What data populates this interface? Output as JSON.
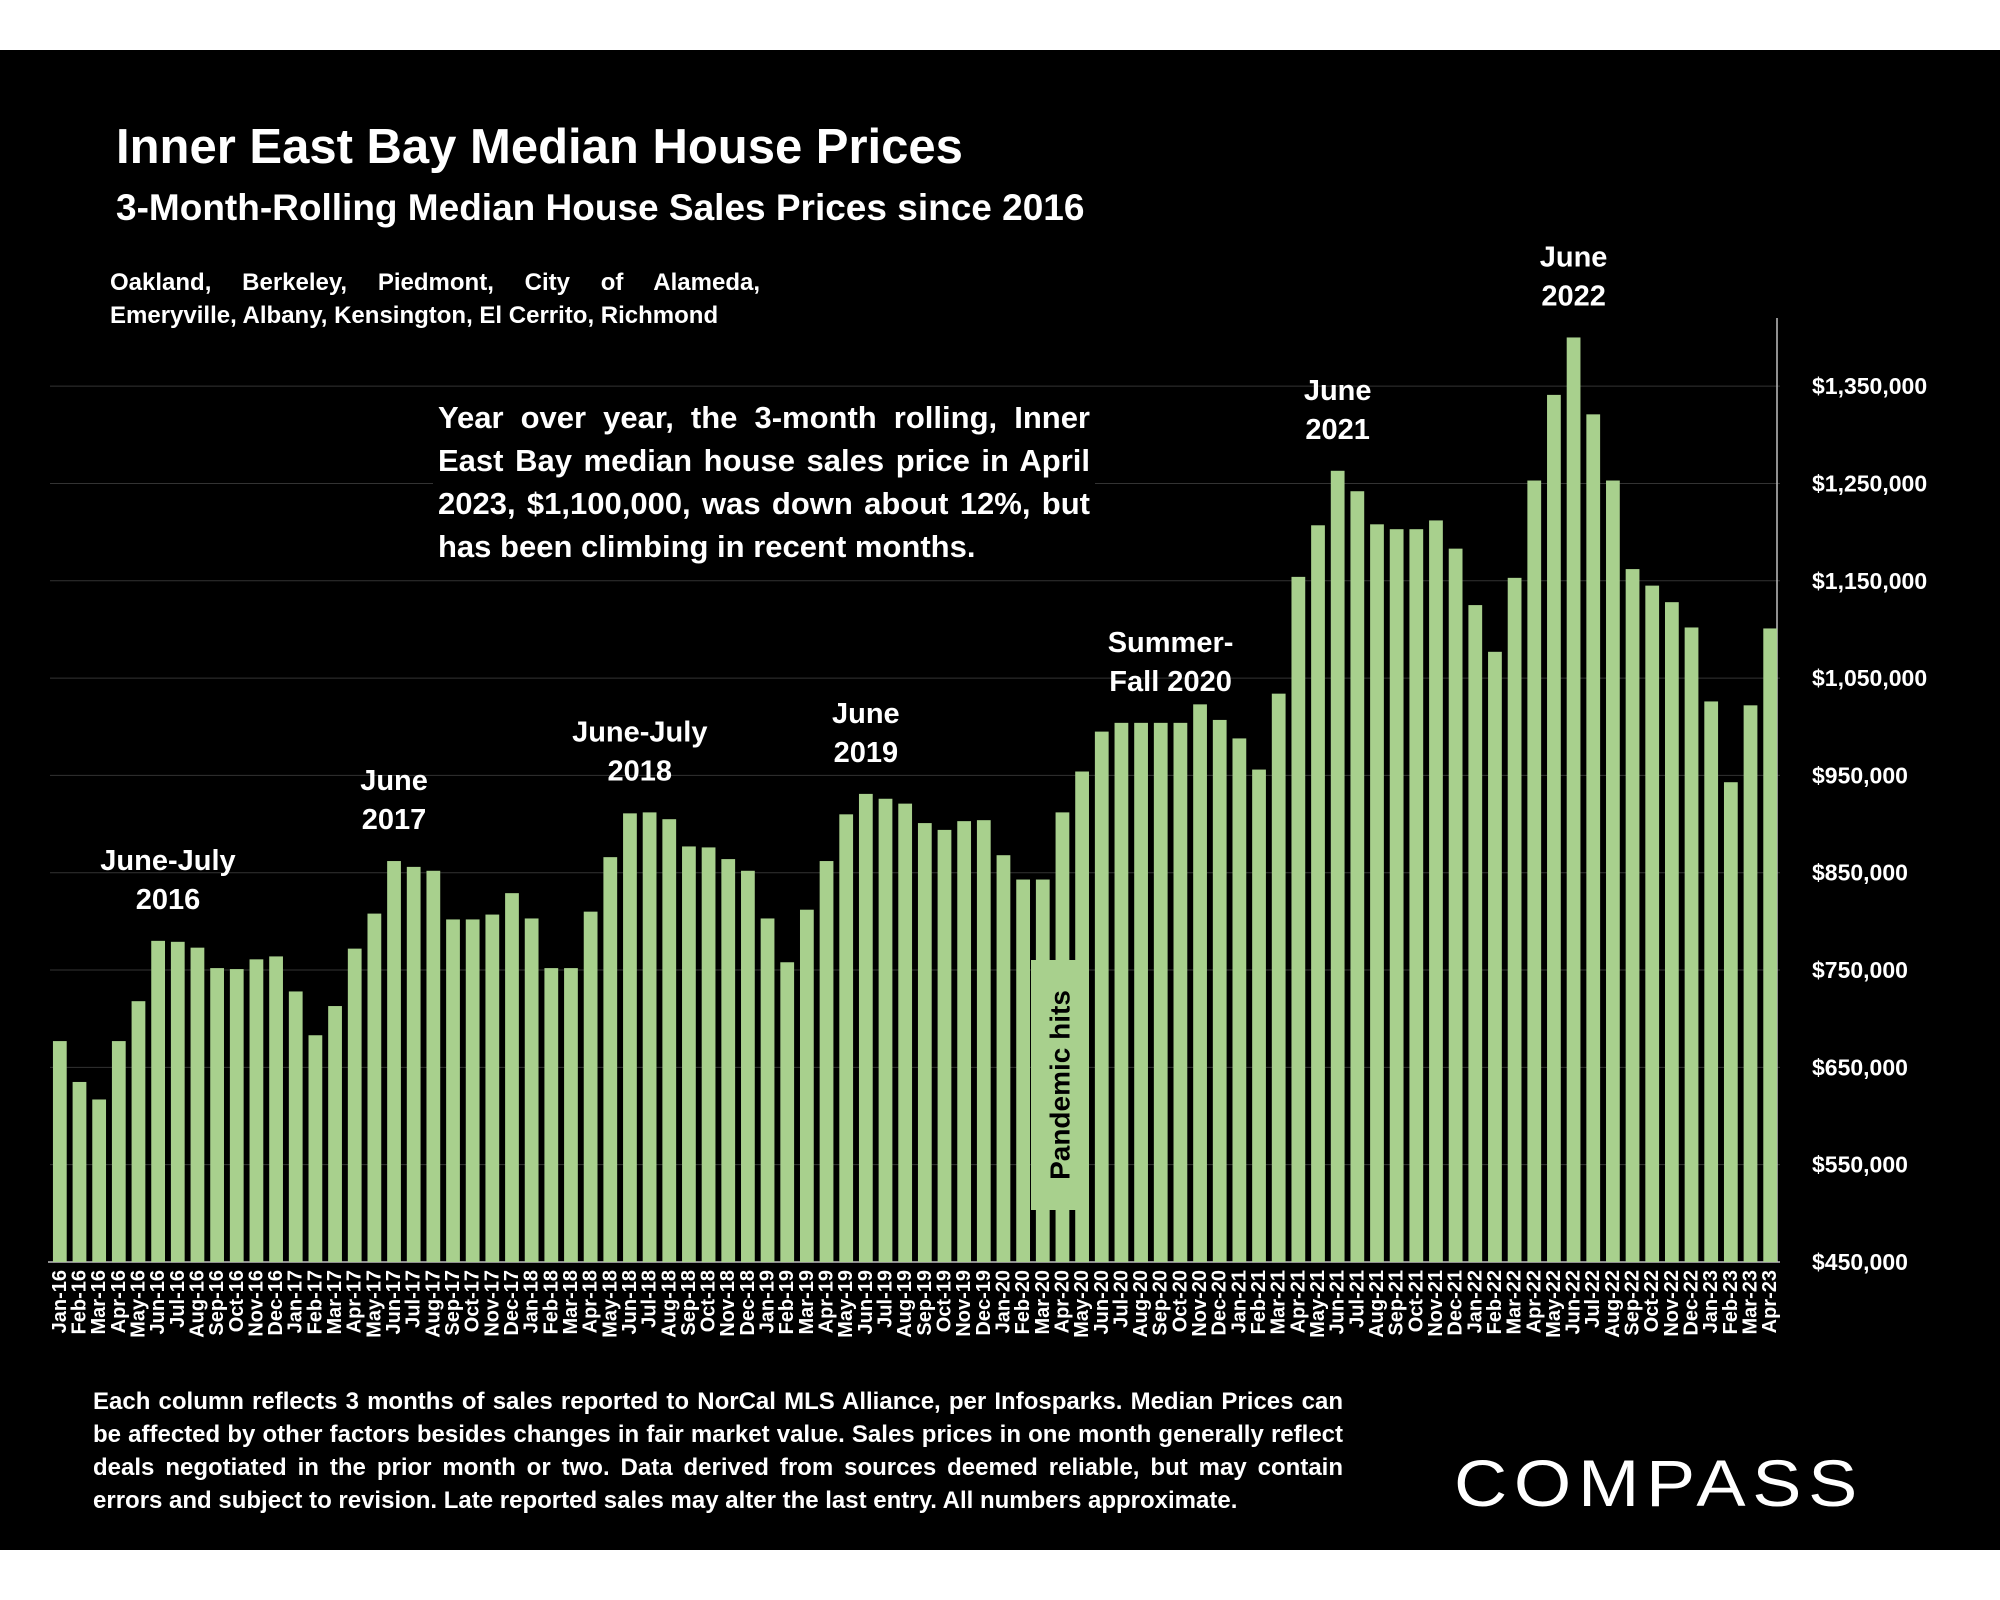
{
  "header": {
    "title": "Inner East Bay Median House Prices",
    "subtitle": "3-Month-Rolling Median House Sales Prices since 2016",
    "region_note": "Oakland, Berkeley, Piedmont, City of Alameda, Emeryville, Albany, Kensington, El Cerrito, Richmond"
  },
  "summary_text": "Year over year, the 3-month rolling, Inner East Bay median house sales price in April 2023, $1,100,000, was down about 12%, but has been climbing in recent months.",
  "footnote": "Each column reflects 3 months of sales reported to NorCal MLS Alliance, per Infosparks. Median Prices can be affected by other factors besides changes in fair market value. Sales prices in one month generally reflect deals negotiated in the prior month or two. Data derived from sources deemed reliable, but may contain errors and subject to revision. Late reported sales may alter the last entry. All numbers approximate.",
  "logo_text": "COMPASS",
  "colors": {
    "bar": "#a8d08d",
    "background": "#000000",
    "text": "#ffffff",
    "grid": "#333333"
  },
  "chart_data": {
    "type": "bar",
    "title": "Inner East Bay Median House Prices",
    "subtitle": "3-Month-Rolling Median House Sales Prices since 2016",
    "xlabel": "",
    "ylabel": "",
    "ylim": [
      450000,
      1420000
    ],
    "yticks": [
      450000,
      550000,
      650000,
      750000,
      850000,
      950000,
      1050000,
      1150000,
      1250000,
      1350000
    ],
    "ytick_labels": [
      "$450,000",
      "$550,000",
      "$650,000",
      "$750,000",
      "$850,000",
      "$950,000",
      "$1,050,000",
      "$1,150,000",
      "$1,250,000",
      "$1,350,000"
    ],
    "grid": true,
    "y_axis_position": "right",
    "categories": [
      "Jan-16",
      "Feb-16",
      "Mar-16",
      "Apr-16",
      "May-16",
      "Jun-16",
      "Jul-16",
      "Aug-16",
      "Sep-16",
      "Oct-16",
      "Nov-16",
      "Dec-16",
      "Jan-17",
      "Feb-17",
      "Mar-17",
      "Apr-17",
      "May-17",
      "Jun-17",
      "Jul-17",
      "Aug-17",
      "Sep-17",
      "Oct-17",
      "Nov-17",
      "Dec-17",
      "Jan-18",
      "Feb-18",
      "Mar-18",
      "Apr-18",
      "May-18",
      "Jun-18",
      "Jul-18",
      "Aug-18",
      "Sep-18",
      "Oct-18",
      "Nov-18",
      "Dec-18",
      "Jan-19",
      "Feb-19",
      "Mar-19",
      "Apr-19",
      "May-19",
      "Jun-19",
      "Jul-19",
      "Aug-19",
      "Sep-19",
      "Oct-19",
      "Nov-19",
      "Dec-19",
      "Jan-20",
      "Feb-20",
      "Mar-20",
      "Apr-20",
      "May-20",
      "Jun-20",
      "Jul-20",
      "Aug-20",
      "Sep-20",
      "Oct-20",
      "Nov-20",
      "Dec-20",
      "Jan-21",
      "Feb-21",
      "Mar-21",
      "Apr-21",
      "May-21",
      "Jun-21",
      "Jul-21",
      "Aug-21",
      "Sep-21",
      "Oct-21",
      "Nov-21",
      "Dec-21",
      "Jan-22",
      "Feb-22",
      "Mar-22",
      "Apr-22",
      "May-22",
      "Jun-22",
      "Jul-22",
      "Aug-22",
      "Sep-22",
      "Oct-22",
      "Nov-22",
      "Dec-22",
      "Jan-23",
      "Feb-23",
      "Mar-23",
      "Apr-23"
    ],
    "values": [
      677000,
      635000,
      617000,
      677000,
      718000,
      780000,
      779000,
      773000,
      752000,
      751000,
      761000,
      764000,
      728000,
      683000,
      713000,
      772000,
      808000,
      862000,
      856000,
      852000,
      802000,
      802000,
      807000,
      829000,
      803000,
      752000,
      752000,
      810000,
      866000,
      911000,
      912000,
      905000,
      877000,
      876000,
      864000,
      852000,
      803000,
      758000,
      812000,
      862000,
      910000,
      931000,
      926000,
      921000,
      901000,
      894000,
      903000,
      904000,
      868000,
      843000,
      843000,
      912000,
      954000,
      995000,
      1004000,
      1004000,
      1004000,
      1004000,
      1023000,
      1007000,
      988000,
      956000,
      1034000,
      1154000,
      1207000,
      1263000,
      1242000,
      1208000,
      1203000,
      1203000,
      1212000,
      1183000,
      1125000,
      1077000,
      1153000,
      1253000,
      1341000,
      1400000,
      1321000,
      1253000,
      1162000,
      1145000,
      1128000,
      1102000,
      1026000,
      943000,
      1022000,
      1101000
    ],
    "annotations": [
      {
        "lines": [
          "June-July",
          "2016"
        ],
        "index": 5.5
      },
      {
        "lines": [
          "June",
          "2017"
        ],
        "index": 17
      },
      {
        "lines": [
          "June-July",
          "2018"
        ],
        "index": 29.5
      },
      {
        "lines": [
          "June",
          "2019"
        ],
        "index": 41
      },
      {
        "lines": [
          "Summer-",
          "Fall 2020"
        ],
        "index": 56.5
      },
      {
        "lines": [
          "June",
          "2021"
        ],
        "index": 65
      },
      {
        "lines": [
          "June",
          "2022"
        ],
        "index": 77
      }
    ],
    "pandemic_label": "Pandemic hits"
  }
}
